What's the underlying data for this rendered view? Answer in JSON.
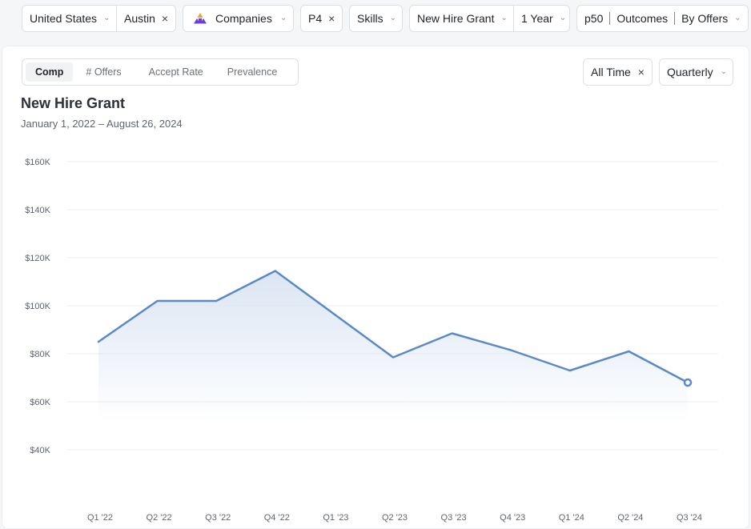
{
  "filters": {
    "country": "United States",
    "city": "Austin",
    "companies": "Companies",
    "level": "P4",
    "skills": "Skills",
    "comp_type": "New Hire Grant",
    "period": "1 Year",
    "percentile": "p50",
    "outcomes": "Outcomes",
    "by": "By Offers"
  },
  "tabs": [
    {
      "label": "Comp",
      "active": true
    },
    {
      "label": "# Offers",
      "active": false
    },
    {
      "label": "Accept Rate",
      "active": false
    },
    {
      "label": "Prevalence",
      "active": false
    }
  ],
  "controls": {
    "range": "All Time",
    "granularity": "Quarterly"
  },
  "chart_title": "New Hire Grant",
  "date_range": "January 1, 2022 – August 26, 2024",
  "icons": {
    "dropdown": "chevron-down-icon",
    "clear": "close-icon",
    "companies": "company-logo-icon"
  },
  "colors": {
    "line": "#5a8ac6",
    "area": "#dbe5f3",
    "grid": "#e9ecef",
    "accent_purple": "#6b3fd6",
    "accent_orange": "#f2a22c"
  },
  "chart_data": {
    "type": "area",
    "categories": [
      "Q1 '22",
      "Q2 '22",
      "Q3 '22",
      "Q4 '22",
      "Q1 '23",
      "Q2 '23",
      "Q3 '23",
      "Q4 '23",
      "Q1 '24",
      "Q2 '24",
      "Q3 '24"
    ],
    "series": [
      {
        "values": [
          85000,
          102000,
          102000,
          114500,
          96500,
          78500,
          88500,
          81500,
          73000,
          81000,
          68000
        ]
      }
    ],
    "yticks": [
      "$40K",
      "$60K",
      "$80K",
      "$100K",
      "$120K",
      "$140K",
      "$160K"
    ],
    "ytick_values": [
      40000,
      60000,
      80000,
      100000,
      120000,
      140000,
      160000
    ],
    "ylim": [
      40000,
      160000
    ],
    "grid": true,
    "last_point_marker": true
  }
}
